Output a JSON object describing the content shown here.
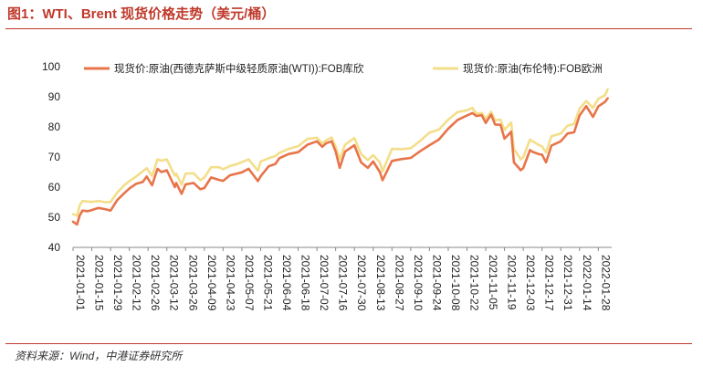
{
  "figure": {
    "title": "图1：WTI、Brent 现货价格走势（美元/桶）",
    "source": "资料来源：Wind，中港证券研究所"
  },
  "colors": {
    "wti": "#e8744a",
    "brent": "#f3de8a",
    "title": "#c0392b",
    "axis": "#888888"
  },
  "chart_data": {
    "type": "line",
    "title": "",
    "xlabel": "",
    "ylabel": "",
    "ylim": [
      40,
      100
    ],
    "yticks": [
      40,
      50,
      60,
      70,
      80,
      90,
      100
    ],
    "xlim": [
      "2021-01-01",
      "2022-02-07"
    ],
    "xtick_labels": [
      "2021-01-01",
      "2021-01-15",
      "2021-01-29",
      "2021-02-12",
      "2021-02-26",
      "2021-03-12",
      "2021-03-26",
      "2021-04-09",
      "2021-04-23",
      "2021-05-07",
      "2021-05-21",
      "2021-06-04",
      "2021-06-18",
      "2021-07-02",
      "2021-07-16",
      "2021-07-30",
      "2021-08-13",
      "2021-08-27",
      "2021-09-10",
      "2021-09-24",
      "2021-10-08",
      "2021-10-22",
      "2021-11-05",
      "2021-11-19",
      "2021-12-03",
      "2021-12-17",
      "2021-12-31",
      "2022-01-14",
      "2022-01-28"
    ],
    "legend_position": "top",
    "grid": false,
    "series": [
      {
        "name": "现货价:原油(西德克萨斯中级轻质原油(WTI)):FOB库欣",
        "x": [
          "2021-01-01",
          "2021-01-04",
          "2021-01-06",
          "2021-01-08",
          "2021-01-12",
          "2021-01-15",
          "2021-01-20",
          "2021-01-25",
          "2021-01-29",
          "2021-02-03",
          "2021-02-08",
          "2021-02-12",
          "2021-02-17",
          "2021-02-22",
          "2021-02-25",
          "2021-03-01",
          "2021-03-05",
          "2021-03-08",
          "2021-03-12",
          "2021-03-18",
          "2021-03-19",
          "2021-03-23",
          "2021-03-26",
          "2021-04-01",
          "2021-04-06",
          "2021-04-09",
          "2021-04-14",
          "2021-04-20",
          "2021-04-23",
          "2021-04-28",
          "2021-05-03",
          "2021-05-07",
          "2021-05-12",
          "2021-05-19",
          "2021-05-21",
          "2021-05-27",
          "2021-06-01",
          "2021-06-04",
          "2021-06-11",
          "2021-06-18",
          "2021-06-25",
          "2021-07-02",
          "2021-07-06",
          "2021-07-09",
          "2021-07-13",
          "2021-07-16",
          "2021-07-19",
          "2021-07-23",
          "2021-07-30",
          "2021-08-04",
          "2021-08-09",
          "2021-08-13",
          "2021-08-18",
          "2021-08-20",
          "2021-08-27",
          "2021-09-03",
          "2021-09-10",
          "2021-09-17",
          "2021-09-24",
          "2021-10-01",
          "2021-10-08",
          "2021-10-15",
          "2021-10-22",
          "2021-10-26",
          "2021-10-29",
          "2021-11-02",
          "2021-11-05",
          "2021-11-09",
          "2021-11-12",
          "2021-11-16",
          "2021-11-19",
          "2021-11-24",
          "2021-11-26",
          "2021-11-30",
          "2021-12-01",
          "2021-12-03",
          "2021-12-08",
          "2021-12-10",
          "2021-12-15",
          "2021-12-17",
          "2021-12-20",
          "2021-12-24",
          "2021-12-31",
          "2022-01-05",
          "2022-01-10",
          "2022-01-14",
          "2022-01-19",
          "2022-01-24",
          "2022-01-28",
          "2022-02-02",
          "2022-02-04"
        ],
        "values": [
          48.5,
          47.6,
          50.6,
          52.2,
          52.0,
          52.4,
          53.1,
          52.7,
          52.2,
          55.7,
          57.9,
          59.5,
          61.1,
          61.7,
          63.5,
          60.6,
          66.1,
          65.0,
          65.6,
          60.0,
          61.4,
          57.8,
          60.9,
          61.4,
          59.3,
          59.7,
          63.2,
          62.4,
          62.1,
          63.9,
          64.5,
          64.9,
          66.1,
          62.0,
          63.6,
          66.9,
          67.7,
          69.6,
          71.0,
          71.6,
          74.1,
          75.2,
          73.4,
          74.6,
          75.2,
          71.8,
          66.4,
          71.8,
          73.9,
          68.2,
          66.4,
          68.5,
          65.0,
          62.3,
          68.7,
          69.3,
          69.7,
          71.9,
          73.9,
          75.8,
          79.4,
          82.3,
          83.8,
          84.6,
          83.6,
          83.9,
          81.3,
          84.1,
          80.8,
          80.7,
          76.1,
          78.4,
          68.2,
          66.2,
          65.6,
          66.3,
          72.3,
          71.7,
          70.9,
          70.8,
          68.2,
          73.8,
          75.2,
          77.8,
          78.2,
          83.8,
          86.9,
          83.3,
          86.8,
          88.3,
          89.5
        ]
      },
      {
        "name": "现货价:原油(布伦特):FOB欧洲",
        "x": [
          "2021-01-01",
          "2021-01-04",
          "2021-01-06",
          "2021-01-08",
          "2021-01-12",
          "2021-01-15",
          "2021-01-20",
          "2021-01-25",
          "2021-01-29",
          "2021-02-03",
          "2021-02-08",
          "2021-02-12",
          "2021-02-17",
          "2021-02-22",
          "2021-02-25",
          "2021-03-01",
          "2021-03-05",
          "2021-03-08",
          "2021-03-12",
          "2021-03-18",
          "2021-03-19",
          "2021-03-23",
          "2021-03-26",
          "2021-04-01",
          "2021-04-06",
          "2021-04-09",
          "2021-04-14",
          "2021-04-20",
          "2021-04-23",
          "2021-04-28",
          "2021-05-03",
          "2021-05-07",
          "2021-05-12",
          "2021-05-19",
          "2021-05-21",
          "2021-05-27",
          "2021-06-01",
          "2021-06-04",
          "2021-06-11",
          "2021-06-18",
          "2021-06-25",
          "2021-07-02",
          "2021-07-06",
          "2021-07-09",
          "2021-07-13",
          "2021-07-16",
          "2021-07-19",
          "2021-07-23",
          "2021-07-30",
          "2021-08-04",
          "2021-08-09",
          "2021-08-13",
          "2021-08-18",
          "2021-08-20",
          "2021-08-27",
          "2021-09-03",
          "2021-09-10",
          "2021-09-17",
          "2021-09-24",
          "2021-10-01",
          "2021-10-08",
          "2021-10-15",
          "2021-10-22",
          "2021-10-26",
          "2021-10-29",
          "2021-11-02",
          "2021-11-05",
          "2021-11-09",
          "2021-11-12",
          "2021-11-16",
          "2021-11-19",
          "2021-11-24",
          "2021-11-26",
          "2021-11-30",
          "2021-12-01",
          "2021-12-03",
          "2021-12-08",
          "2021-12-10",
          "2021-12-15",
          "2021-12-17",
          "2021-12-20",
          "2021-12-24",
          "2021-12-31",
          "2022-01-05",
          "2022-01-10",
          "2022-01-14",
          "2022-01-19",
          "2022-01-24",
          "2022-01-28",
          "2022-02-02",
          "2022-02-04"
        ],
        "values": [
          51.0,
          50.5,
          53.9,
          55.4,
          55.2,
          55.1,
          55.4,
          55.0,
          55.1,
          58.2,
          60.5,
          62.0,
          63.5,
          65.2,
          66.3,
          63.7,
          69.2,
          68.8,
          69.2,
          63.8,
          64.5,
          60.8,
          64.5,
          64.6,
          62.3,
          63.2,
          66.6,
          66.6,
          65.9,
          67.0,
          67.6,
          68.3,
          69.2,
          65.5,
          68.5,
          69.6,
          70.3,
          71.4,
          72.7,
          73.6,
          76.0,
          76.4,
          74.5,
          75.6,
          76.5,
          73.4,
          69.3,
          74.1,
          76.3,
          71.0,
          69.0,
          70.6,
          68.2,
          65.2,
          72.7,
          72.6,
          72.9,
          75.3,
          78.1,
          79.1,
          82.4,
          84.9,
          85.5,
          86.3,
          84.4,
          84.6,
          82.7,
          85.0,
          82.2,
          82.4,
          79.0,
          81.5,
          72.7,
          70.1,
          69.2,
          69.9,
          75.8,
          75.2,
          73.9,
          73.5,
          71.5,
          76.9,
          77.8,
          80.4,
          81.0,
          86.1,
          88.6,
          86.3,
          89.3,
          90.5,
          92.5
        ]
      }
    ]
  }
}
